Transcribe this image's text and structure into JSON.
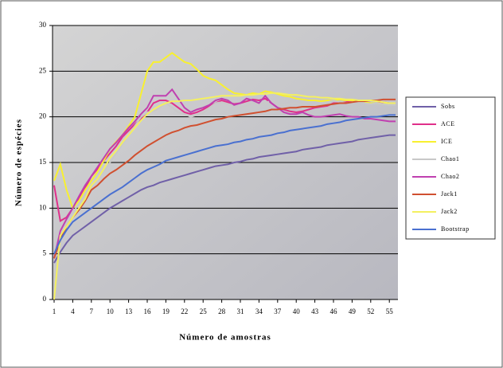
{
  "chart_data": {
    "type": "line",
    "x_label": "Número de amostras",
    "y_label": "Número de espécies",
    "x": [
      1,
      2,
      3,
      4,
      5,
      6,
      7,
      8,
      9,
      10,
      11,
      12,
      13,
      14,
      15,
      16,
      17,
      18,
      19,
      20,
      21,
      22,
      23,
      24,
      25,
      26,
      27,
      28,
      29,
      30,
      31,
      32,
      33,
      34,
      35,
      36,
      37,
      38,
      39,
      40,
      41,
      42,
      43,
      44,
      45,
      46,
      47,
      48,
      49,
      50,
      51,
      52,
      53,
      54,
      55,
      56
    ],
    "xlim": [
      1,
      56
    ],
    "xticks": [
      1,
      4,
      7,
      10,
      13,
      16,
      19,
      22,
      25,
      28,
      31,
      34,
      37,
      40,
      43,
      46,
      49,
      52,
      55
    ],
    "ylim": [
      0,
      30
    ],
    "yticks": [
      0,
      5,
      10,
      15,
      20,
      25,
      30
    ],
    "grid": true,
    "legend": "right",
    "series": [
      {
        "name": "Sobs",
        "color": "#7060a8",
        "values": [
          4,
          5.2,
          6.2,
          7,
          7.5,
          8,
          8.5,
          9,
          9.5,
          10,
          10.4,
          10.8,
          11.2,
          11.6,
          12,
          12.3,
          12.5,
          12.8,
          13,
          13.2,
          13.4,
          13.6,
          13.8,
          14,
          14.2,
          14.4,
          14.6,
          14.7,
          14.8,
          15,
          15.1,
          15.3,
          15.4,
          15.6,
          15.7,
          15.8,
          15.9,
          16,
          16.1,
          16.2,
          16.4,
          16.5,
          16.6,
          16.7,
          16.9,
          17,
          17.1,
          17.2,
          17.3,
          17.5,
          17.6,
          17.7,
          17.8,
          17.9,
          18,
          18
        ]
      },
      {
        "name": "ACE",
        "color": "#e0308a",
        "values": [
          12.5,
          8.6,
          9,
          10,
          11,
          12.2,
          13.5,
          14.3,
          15.2,
          16,
          16.8,
          17.8,
          18.5,
          19.2,
          19.8,
          20.5,
          21.5,
          21.8,
          21.8,
          21.5,
          21,
          20.5,
          20.3,
          20.5,
          20.8,
          21.2,
          21.5,
          21.8,
          21.6,
          21.4,
          21.5,
          21.7,
          21.9,
          21.8,
          22,
          21.5,
          21,
          20.8,
          20.6,
          20.5,
          20.6,
          20.8,
          21,
          21.1,
          21.2,
          21.5,
          21.5,
          21.6,
          21.8,
          21.7,
          21.6,
          21.5,
          21.5,
          21.6,
          21.5,
          21.5
        ]
      },
      {
        "name": "ICE",
        "color": "#f8f030",
        "values": [
          13,
          14.8,
          12,
          10,
          10.8,
          12,
          13,
          14,
          15.2,
          16.5,
          17.3,
          18,
          19,
          20,
          22.5,
          25,
          26,
          26,
          26.5,
          27,
          26.5,
          26,
          25.8,
          25.2,
          24.5,
          24.2,
          24,
          23.5,
          23,
          22.6,
          22.5,
          22.4,
          22.6,
          22.5,
          22.8,
          22.7,
          22.5,
          22.3,
          22.2,
          22,
          21.9,
          21.8,
          21.8,
          21.7,
          21.8,
          21.8,
          21.9,
          21.8,
          21.8,
          21.7,
          21.6,
          21.5,
          21.5,
          21.4,
          21.5,
          21.5
        ]
      },
      {
        "name": "Chao1",
        "color": "#c8c8c8",
        "values": [
          4.5,
          7.5,
          8.8,
          9.5,
          10.5,
          11.5,
          12.5,
          13.2,
          14,
          15,
          16,
          17,
          18,
          19,
          20,
          20.5,
          20.6,
          21,
          21.5,
          21,
          20.5,
          20.3,
          20,
          20.2,
          20.4,
          21,
          21.5,
          21.6,
          21.4,
          21.2,
          21,
          21.2,
          21.5,
          21.3,
          21.5,
          21.8,
          21.5,
          21.3,
          21.4,
          21.5,
          21.3,
          21.2,
          21.3,
          21.5,
          21.6,
          21.8,
          21.6,
          21.5,
          21.6,
          21.7,
          21.5,
          21.4,
          21.5,
          21.4,
          21.3,
          21.3
        ]
      },
      {
        "name": "Chao2",
        "color": "#c040b0",
        "values": [
          4.5,
          7.5,
          8.8,
          10,
          11.3,
          12.5,
          13.5,
          14.5,
          15.5,
          16.5,
          17.2,
          18,
          18.8,
          19.5,
          20.3,
          21,
          22.3,
          22.3,
          22.3,
          23,
          22,
          21,
          20.5,
          20.8,
          21,
          21.3,
          21.8,
          22,
          21.8,
          21.3,
          21.5,
          22,
          21.8,
          21.5,
          22.3,
          21.5,
          21,
          20.5,
          20.3,
          20.3,
          20.5,
          20.2,
          20,
          20,
          20.1,
          20.2,
          20.3,
          20.1,
          20,
          20,
          19.8,
          19.8,
          19.7,
          19.6,
          19.5,
          19.5
        ]
      },
      {
        "name": "Jack1",
        "color": "#d05030",
        "values": [
          4.5,
          6.5,
          8,
          9,
          9.8,
          10.8,
          12,
          12.5,
          13.2,
          13.8,
          14.2,
          14.7,
          15.2,
          15.8,
          16.3,
          16.8,
          17.2,
          17.6,
          18,
          18.3,
          18.5,
          18.8,
          19,
          19.1,
          19.3,
          19.5,
          19.7,
          19.8,
          20,
          20.1,
          20.2,
          20.3,
          20.4,
          20.5,
          20.6,
          20.8,
          20.8,
          20.9,
          21,
          21,
          21.1,
          21.1,
          21.1,
          21.2,
          21.3,
          21.4,
          21.5,
          21.5,
          21.6,
          21.7,
          21.7,
          21.8,
          21.8,
          21.9,
          21.9,
          21.9
        ]
      },
      {
        "name": "Jack2",
        "color": "#f4f060",
        "values": [
          0,
          7,
          8,
          9,
          10,
          11,
          12.5,
          13.2,
          14.3,
          15.5,
          16.3,
          17.2,
          18,
          18.8,
          19.6,
          20.3,
          20.8,
          21.2,
          21.5,
          21.7,
          21.7,
          21.8,
          21.8,
          21.9,
          22,
          22.1,
          22.2,
          22.3,
          22.3,
          22.3,
          22.3,
          22.4,
          22.4,
          22.5,
          22.5,
          22.6,
          22.6,
          22.5,
          22.4,
          22.4,
          22.3,
          22.2,
          22.2,
          22.1,
          22.1,
          22,
          22,
          21.9,
          21.9,
          21.8,
          21.8,
          21.8,
          21.7,
          21.6,
          21.5,
          21.5
        ]
      },
      {
        "name": "Bootstrap",
        "color": "#4a70d0",
        "values": [
          5,
          6.5,
          7.6,
          8.5,
          9,
          9.5,
          10,
          10.5,
          11,
          11.5,
          11.9,
          12.3,
          12.8,
          13.3,
          13.8,
          14.2,
          14.5,
          14.8,
          15.2,
          15.4,
          15.6,
          15.8,
          16,
          16.2,
          16.4,
          16.6,
          16.8,
          16.9,
          17,
          17.2,
          17.3,
          17.5,
          17.6,
          17.8,
          17.9,
          18,
          18.2,
          18.3,
          18.5,
          18.6,
          18.7,
          18.8,
          18.9,
          19,
          19.2,
          19.3,
          19.4,
          19.6,
          19.7,
          19.8,
          19.9,
          20,
          20,
          20.1,
          20.2,
          20.2
        ]
      }
    ]
  }
}
